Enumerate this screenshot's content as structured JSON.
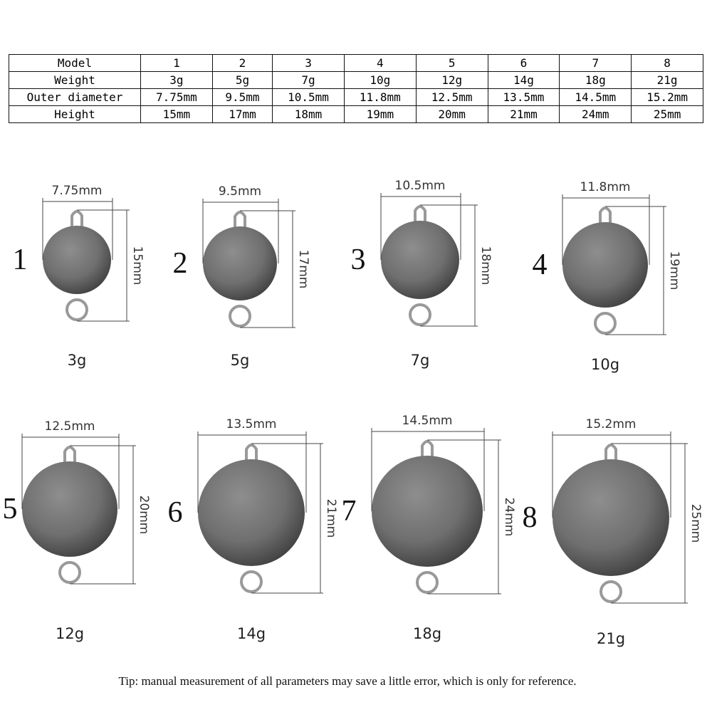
{
  "table": {
    "rows": [
      [
        "Model",
        "1",
        "2",
        "3",
        "4",
        "5",
        "6",
        "7",
        "8"
      ],
      [
        "Weight",
        "3g",
        "5g",
        "7g",
        "10g",
        "12g",
        "14g",
        "18g",
        "21g"
      ],
      [
        "Outer diameter",
        "7.75mm",
        "9.5mm",
        "10.5mm",
        "11.8mm",
        "12.5mm",
        "13.5mm",
        "14.5mm",
        "15.2mm"
      ],
      [
        "Height",
        "15mm",
        "17mm",
        "18mm",
        "19mm",
        "20mm",
        "21mm",
        "24mm",
        "25mm"
      ]
    ]
  },
  "items": [
    {
      "number": "1",
      "diameter": "7.75mm",
      "height": "15mm",
      "weight": "3g"
    },
    {
      "number": "2",
      "diameter": "9.5mm",
      "height": "17mm",
      "weight": "5g"
    },
    {
      "number": "3",
      "diameter": "10.5mm",
      "height": "18mm",
      "weight": "7g"
    },
    {
      "number": "4",
      "diameter": "11.8mm",
      "height": "19mm",
      "weight": "10g"
    },
    {
      "number": "5",
      "diameter": "12.5mm",
      "height": "20mm",
      "weight": "12g"
    },
    {
      "number": "6",
      "diameter": "13.5mm",
      "height": "21mm",
      "weight": "14g"
    },
    {
      "number": "7",
      "diameter": "14.5mm",
      "height": "24mm",
      "weight": "18g"
    },
    {
      "number": "8",
      "diameter": "15.2mm",
      "height": "25mm",
      "weight": "21g"
    }
  ],
  "tip": "Tip: manual measurement of all parameters may save a little error, which is only for reference."
}
